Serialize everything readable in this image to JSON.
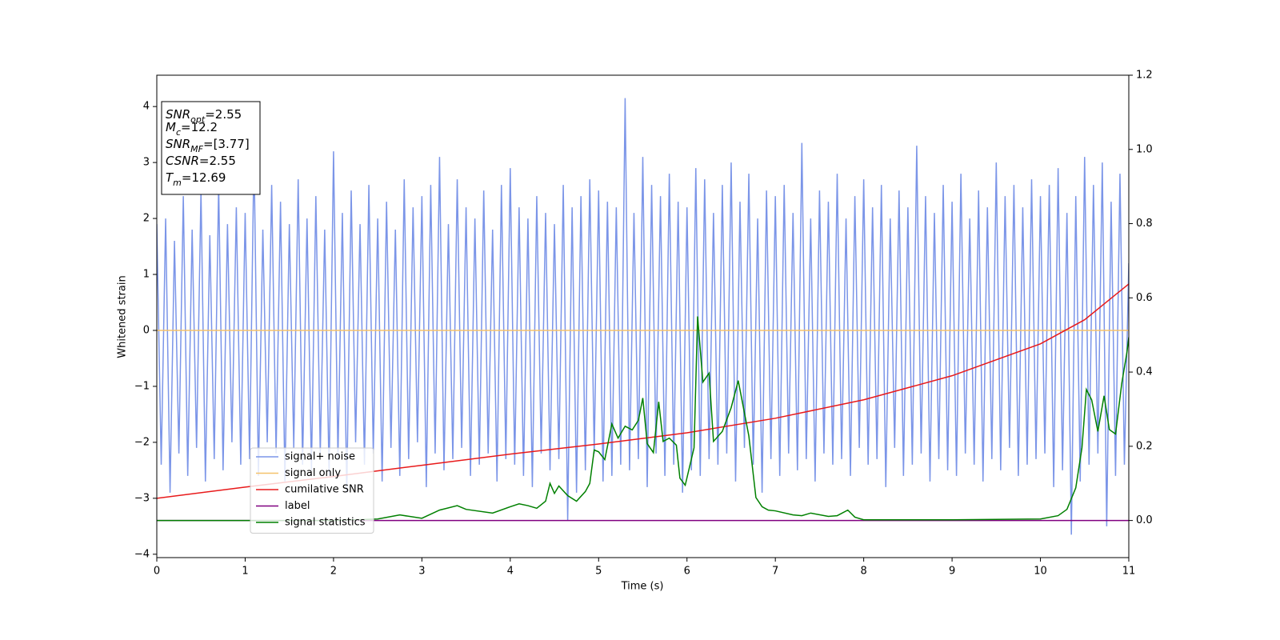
{
  "chart_data": {
    "type": "line",
    "xlabel": "Time (s)",
    "ylabel": "Whitened strain",
    "xlim": [
      0,
      11
    ],
    "xticks": [
      0,
      1,
      2,
      3,
      4,
      5,
      6,
      7,
      8,
      9,
      10,
      11
    ],
    "ylim": [
      -4.06,
      4.56
    ],
    "yticks": [
      {
        "value": -4,
        "label": "−4"
      },
      {
        "value": -3,
        "label": "−3"
      },
      {
        "value": -2,
        "label": "−2"
      },
      {
        "value": -1,
        "label": "−1"
      },
      0,
      1,
      2,
      3,
      4
    ],
    "y2lim": [
      -0.1,
      1.2
    ],
    "y2ticks": [
      {
        "value": 0,
        "label": "0.0"
      },
      0.2,
      0.4,
      0.6,
      0.8,
      {
        "value": 1,
        "label": "1.0"
      },
      1.2
    ],
    "annotations": [
      {
        "text": "SNR",
        "sub": "opt",
        "value": "=2.55"
      },
      {
        "text": "M",
        "sub": "c",
        "value": "=12.2"
      },
      {
        "text": "SNR",
        "sub": "MF",
        "value": "=[3.77]"
      },
      {
        "text": "CSNR",
        "value": "=2.55"
      },
      {
        "text": "T",
        "sub": "m",
        "value": "=12.69"
      }
    ],
    "series": [
      {
        "name": "signal+ noise",
        "color": "#7b95e8",
        "x": [
          0,
          0.05,
          0.1,
          0.15,
          0.2,
          0.25,
          0.3,
          0.35,
          0.4,
          0.45,
          0.5,
          0.55,
          0.6,
          0.65,
          0.7,
          0.75,
          0.8,
          0.85,
          0.9,
          0.95,
          1,
          1.05,
          1.1,
          1.15,
          1.2,
          1.25,
          1.3,
          1.35,
          1.4,
          1.45,
          1.5,
          1.55,
          1.6,
          1.65,
          1.7,
          1.75,
          1.8,
          1.85,
          1.9,
          1.95,
          2,
          2.05,
          2.1,
          2.15,
          2.2,
          2.25,
          2.3,
          2.35,
          2.4,
          2.45,
          2.5,
          2.55,
          2.6,
          2.65,
          2.7,
          2.75,
          2.8,
          2.85,
          2.9,
          2.95,
          3,
          3.05,
          3.1,
          3.15,
          3.2,
          3.25,
          3.3,
          3.35,
          3.4,
          3.45,
          3.5,
          3.55,
          3.6,
          3.65,
          3.7,
          3.75,
          3.8,
          3.85,
          3.9,
          3.95,
          4,
          4.05,
          4.1,
          4.15,
          4.2,
          4.25,
          4.3,
          4.35,
          4.4,
          4.45,
          4.5,
          4.55,
          4.6,
          4.65,
          4.7,
          4.75,
          4.8,
          4.85,
          4.9,
          4.95,
          5,
          5.05,
          5.1,
          5.15,
          5.2,
          5.25,
          5.3,
          5.35,
          5.4,
          5.45,
          5.5,
          5.55,
          5.6,
          5.65,
          5.7,
          5.75,
          5.8,
          5.85,
          5.9,
          5.95,
          6,
          6.05,
          6.1,
          6.15,
          6.2,
          6.25,
          6.3,
          6.35,
          6.4,
          6.45,
          6.5,
          6.55,
          6.6,
          6.65,
          6.7,
          6.75,
          6.8,
          6.85,
          6.9,
          6.95,
          7,
          7.05,
          7.1,
          7.15,
          7.2,
          7.25,
          7.3,
          7.35,
          7.4,
          7.45,
          7.5,
          7.55,
          7.6,
          7.65,
          7.7,
          7.75,
          7.8,
          7.85,
          7.9,
          7.95,
          8,
          8.05,
          8.1,
          8.15,
          8.2,
          8.25,
          8.3,
          8.35,
          8.4,
          8.45,
          8.5,
          8.55,
          8.6,
          8.65,
          8.7,
          8.75,
          8.8,
          8.85,
          8.9,
          8.95,
          9,
          9.05,
          9.1,
          9.15,
          9.2,
          9.25,
          9.3,
          9.35,
          9.4,
          9.45,
          9.5,
          9.55,
          9.6,
          9.65,
          9.7,
          9.75,
          9.8,
          9.85,
          9.9,
          9.95,
          10,
          10.05,
          10.1,
          10.15,
          10.2,
          10.25,
          10.3,
          10.35,
          10.4,
          10.45,
          10.5,
          10.55,
          10.6,
          10.65,
          10.7,
          10.75,
          10.8,
          10.85,
          10.9,
          10.95,
          11
        ],
        "values": [
          1.9,
          -2.4,
          2.0,
          -2.9,
          1.6,
          -2.2,
          2.4,
          -2.6,
          1.8,
          -2.1,
          2.5,
          -2.7,
          1.7,
          -2.3,
          2.6,
          -2.5,
          1.9,
          -2.0,
          2.2,
          -2.4,
          2.1,
          -2.3,
          3.2,
          -2.6,
          1.8,
          -2.0,
          2.6,
          -2.2,
          2.3,
          -2.7,
          1.9,
          -2.1,
          2.7,
          -2.4,
          2.0,
          -2.5,
          2.4,
          -2.2,
          1.8,
          -2.6,
          3.2,
          -2.3,
          2.1,
          -2.9,
          2.5,
          -2.0,
          1.9,
          -2.4,
          2.6,
          -2.2,
          2.0,
          -2.7,
          2.3,
          -2.1,
          1.8,
          -2.6,
          2.7,
          -2.3,
          2.2,
          -2.0,
          2.4,
          -2.8,
          2.6,
          -2.2,
          3.1,
          -2.5,
          1.9,
          -2.3,
          2.7,
          -2.1,
          2.2,
          -2.6,
          2.0,
          -2.4,
          2.5,
          -2.2,
          1.8,
          -2.7,
          2.6,
          -2.3,
          2.9,
          -2.4,
          2.2,
          -2.6,
          2.0,
          -2.8,
          2.4,
          -2.2,
          2.1,
          -2.5,
          1.9,
          -2.3,
          2.6,
          -3.4,
          2.2,
          -2.9,
          2.4,
          -2.5,
          2.7,
          -2.2,
          2.5,
          -2.7,
          2.3,
          -2.6,
          2.2,
          -2.4,
          4.15,
          -2.5,
          2.1,
          -2.3,
          3.1,
          -2.8,
          2.6,
          -2.2,
          2.4,
          -2.6,
          2.8,
          -2.4,
          2.3,
          -2.9,
          2.2,
          -2.5,
          2.9,
          -2.6,
          2.7,
          -2.3,
          2.1,
          -2.4,
          2.6,
          -2.2,
          3.0,
          -2.7,
          2.3,
          -2.1,
          2.8,
          -2.4,
          2.0,
          -2.9,
          2.5,
          -2.3,
          2.4,
          -2.6,
          2.6,
          -2.2,
          2.1,
          -2.5,
          3.35,
          -2.3,
          2.0,
          -2.7,
          2.5,
          -2.2,
          2.3,
          -2.4,
          2.8,
          -2.3,
          2.0,
          -2.6,
          2.4,
          -2.1,
          2.7,
          -2.4,
          2.2,
          -2.3,
          2.6,
          -2.8,
          2.0,
          -2.1,
          2.5,
          -2.6,
          2.2,
          -2.4,
          3.3,
          -2.2,
          2.4,
          -2.7,
          2.1,
          -2.3,
          2.6,
          -2.5,
          2.3,
          -2.6,
          2.8,
          -2.2,
          2.0,
          -2.4,
          2.5,
          -2.7,
          2.2,
          -2.3,
          3.0,
          -2.5,
          2.4,
          -2.1,
          2.6,
          -2.6,
          2.2,
          -2.4,
          2.7,
          -2.3,
          2.4,
          -2.2,
          2.6,
          -2.8,
          2.9,
          -2.5,
          2.1,
          -3.65,
          2.4,
          -2.7,
          3.1,
          -2.4,
          2.6,
          -2.2,
          3.0,
          -3.5,
          2.3,
          -2.6,
          2.8,
          -2.4,
          1.2
        ]
      },
      {
        "name": "signal only",
        "color": "#f5c26b",
        "x": [
          0,
          11
        ],
        "values": [
          0,
          0
        ]
      },
      {
        "name": "cumilative SNR",
        "color": "#e8191a",
        "x": [
          0,
          1,
          2,
          3,
          4,
          5,
          6,
          7,
          8,
          9,
          10,
          10.5,
          11
        ],
        "values": [
          -3.0,
          -2.8,
          -2.61,
          -2.41,
          -2.21,
          -2.03,
          -1.83,
          -1.57,
          -1.24,
          -0.81,
          -0.24,
          0.19,
          0.83
        ]
      },
      {
        "name": "label",
        "color": "#800080",
        "axis": "y2",
        "x": [
          0,
          11
        ],
        "values": [
          0,
          0
        ]
      },
      {
        "name": "signal statistics",
        "color": "#008000",
        "axis": "y2",
        "x": [
          0,
          0.5,
          1,
          2,
          2.5,
          2.75,
          3,
          3.2,
          3.4,
          3.5,
          3.8,
          4.0,
          4.1,
          4.2,
          4.3,
          4.4,
          4.45,
          4.5,
          4.55,
          4.65,
          4.75,
          4.85,
          4.9,
          4.95,
          5.0,
          5.07,
          5.15,
          5.22,
          5.3,
          5.38,
          5.45,
          5.5,
          5.55,
          5.62,
          5.68,
          5.73,
          5.8,
          5.88,
          5.92,
          5.98,
          6.08,
          6.12,
          6.18,
          6.25,
          6.3,
          6.4,
          6.5,
          6.58,
          6.7,
          6.78,
          6.85,
          6.92,
          7.0,
          7.2,
          7.3,
          7.4,
          7.6,
          7.7,
          7.82,
          7.9,
          8.0,
          9,
          10,
          10.2,
          10.3,
          10.4,
          10.47,
          10.52,
          10.58,
          10.65,
          10.72,
          10.78,
          10.85,
          10.92,
          10.98,
          11
        ],
        "values": [
          0,
          0,
          0,
          0,
          0.004,
          0.015,
          0.006,
          0.028,
          0.04,
          0.03,
          0.02,
          0.037,
          0.045,
          0.04,
          0.033,
          0.052,
          0.1,
          0.073,
          0.093,
          0.067,
          0.052,
          0.078,
          0.1,
          0.19,
          0.185,
          0.164,
          0.26,
          0.222,
          0.254,
          0.244,
          0.27,
          0.33,
          0.207,
          0.183,
          0.32,
          0.213,
          0.222,
          0.203,
          0.114,
          0.095,
          0.196,
          0.55,
          0.373,
          0.397,
          0.213,
          0.24,
          0.304,
          0.377,
          0.228,
          0.062,
          0.037,
          0.028,
          0.026,
          0.015,
          0.013,
          0.02,
          0.011,
          0.013,
          0.028,
          0.009,
          0.002,
          0.002,
          0.004,
          0.013,
          0.03,
          0.088,
          0.196,
          0.353,
          0.325,
          0.24,
          0.336,
          0.245,
          0.233,
          0.369,
          0.455,
          0.494
        ]
      }
    ]
  }
}
